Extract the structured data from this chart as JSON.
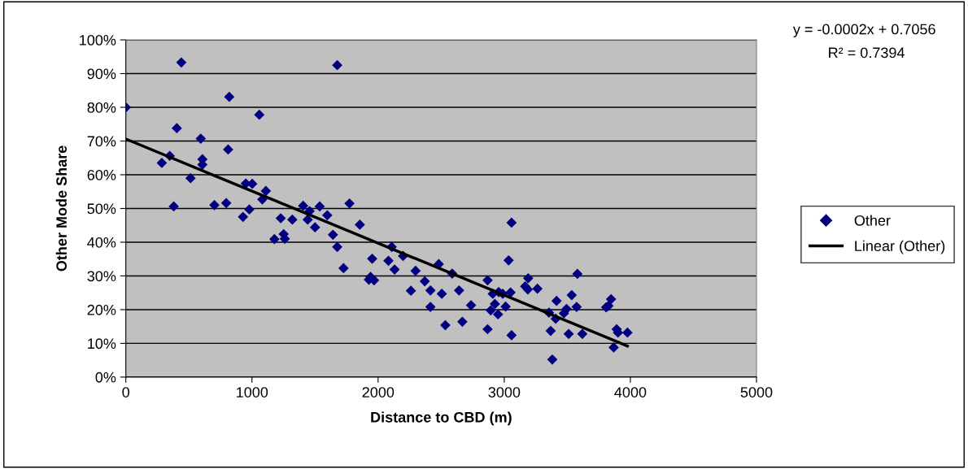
{
  "chart_data": {
    "type": "scatter",
    "xlabel": "Distance to CBD (m)",
    "ylabel": "Other Mode Share",
    "annotations": [
      "y = -0.0002x + 0.7056",
      "R² = 0.7394"
    ],
    "xlim": [
      0,
      5000
    ],
    "xticks": [
      0,
      1000,
      2000,
      3000,
      4000,
      5000
    ],
    "ylim": [
      0,
      100
    ],
    "yticks": [
      {
        "value": 0,
        "label": "0%"
      },
      {
        "value": 10,
        "label": "10%"
      },
      {
        "value": 20,
        "label": "20%"
      },
      {
        "value": 30,
        "label": "30%"
      },
      {
        "value": 40,
        "label": "40%"
      },
      {
        "value": 50,
        "label": "50%"
      },
      {
        "value": 60,
        "label": "60%"
      },
      {
        "value": 70,
        "label": "70%"
      },
      {
        "value": 80,
        "label": "80%"
      },
      {
        "value": 90,
        "label": "90%"
      },
      {
        "value": 100,
        "label": "100%"
      }
    ],
    "grid": "y",
    "legend": "right",
    "series": [
      {
        "name": "Other",
        "color": "#000080",
        "marker": "diamond",
        "x": [
          0,
          285,
          348,
          380,
          404,
          440,
          513,
          594,
          607,
          607,
          702,
          796,
          811,
          820,
          929,
          951,
          979,
          1002,
          1058,
          1082,
          1110,
          1178,
          1228,
          1251,
          1260,
          1320,
          1406,
          1442,
          1457,
          1500,
          1537,
          1597,
          1642,
          1676,
          1676,
          1726,
          1773,
          1855,
          1927,
          1940,
          1953,
          1968,
          2082,
          2108,
          2131,
          2198,
          2260,
          2297,
          2370,
          2415,
          2415,
          2481,
          2505,
          2533,
          2587,
          2642,
          2668,
          2737,
          2868,
          2868,
          2909,
          2926,
          2893,
          2951,
          2956,
          2988,
          3011,
          3035,
          3050,
          3058,
          3058,
          3166,
          3190,
          3187,
          3263,
          3355,
          3368,
          3381,
          3415,
          3408,
          3473,
          3494,
          3511,
          3535,
          3574,
          3580,
          3619,
          3808,
          3826,
          3847,
          3868,
          3891,
          3902,
          3977
        ],
        "values": [
          80,
          63.5,
          65.6,
          50.6,
          73.8,
          93.3,
          59,
          70.7,
          64.6,
          63,
          51,
          51.6,
          67.5,
          83.1,
          47.5,
          57.4,
          49.7,
          57.3,
          77.8,
          52.7,
          55.2,
          40.9,
          47.1,
          42.4,
          41,
          46.7,
          50.8,
          46.7,
          49.2,
          44.4,
          50.6,
          48,
          42.2,
          92.5,
          38.6,
          32.3,
          51.5,
          45.2,
          28.9,
          29.7,
          35.1,
          28.7,
          34.5,
          38.6,
          31.9,
          35.9,
          25.6,
          31.5,
          28.4,
          25.7,
          20.8,
          33.5,
          24.7,
          15.4,
          30.7,
          25.7,
          16.4,
          21.3,
          14.2,
          28.7,
          24.7,
          21.7,
          19.8,
          18.6,
          25.2,
          24.7,
          20.9,
          34.6,
          25.1,
          12.4,
          45.8,
          26.9,
          29.3,
          26,
          26.2,
          19.1,
          13.7,
          5.2,
          22.6,
          17.3,
          18.9,
          20.2,
          12.8,
          24.3,
          20.8,
          30.6,
          12.8,
          20.7,
          21.1,
          23.1,
          8.8,
          14.2,
          13.2,
          13.2
        ]
      },
      {
        "name": "Linear (Other)",
        "type": "line",
        "color": "#000000",
        "marker": "none",
        "line_style": "solid",
        "x": [
          0,
          3977
        ],
        "values": [
          70.6,
          9.2
        ]
      }
    ]
  }
}
